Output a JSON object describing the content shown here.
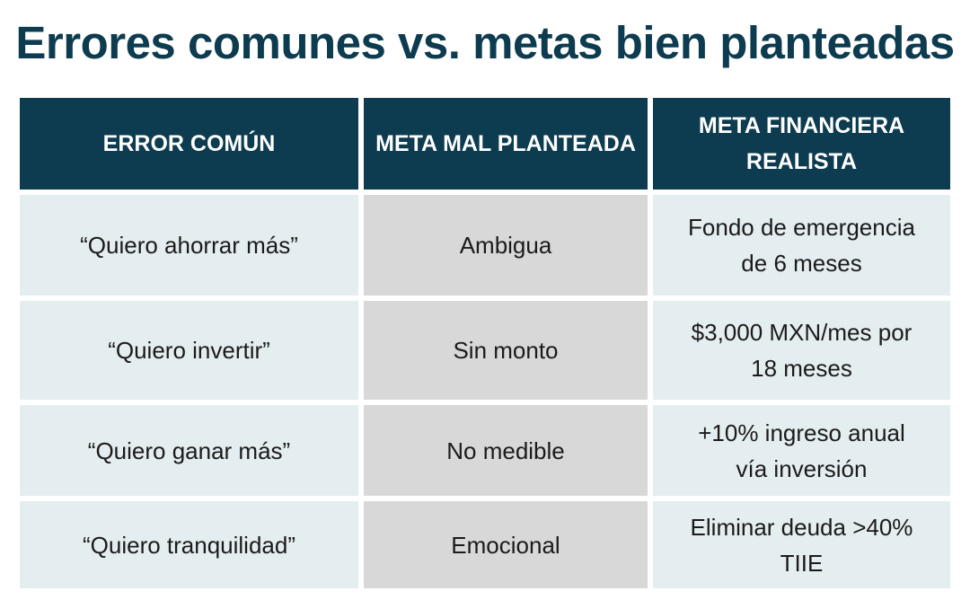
{
  "title": "Errores comunes vs. metas bien planteadas",
  "headers": [
    "ERROR COMÚN",
    "META MAL PLANTEADA",
    "META FINANCIERA REALISTA"
  ],
  "rows": [
    {
      "error": "“Quiero ahorrar más”",
      "bad": "Ambigua",
      "good": "Fondo de emergencia de 6 meses"
    },
    {
      "error": "“Quiero invertir”",
      "bad": "Sin monto",
      "good": "$3,000 MXN/mes por 18 meses"
    },
    {
      "error": "“Quiero ganar más”",
      "bad": "No medible",
      "good": "+10% ingreso anual vía inversión"
    },
    {
      "error": "“Quiero tranquilidad”",
      "bad": "Emocional",
      "good": "Eliminar deuda >40% TIIE"
    }
  ],
  "colors": {
    "header_bg": "#0d3b4f",
    "col1_bg": "#e4edf0",
    "col2_bg": "#d8d8d8",
    "col3_bg": "#e4edf0"
  }
}
